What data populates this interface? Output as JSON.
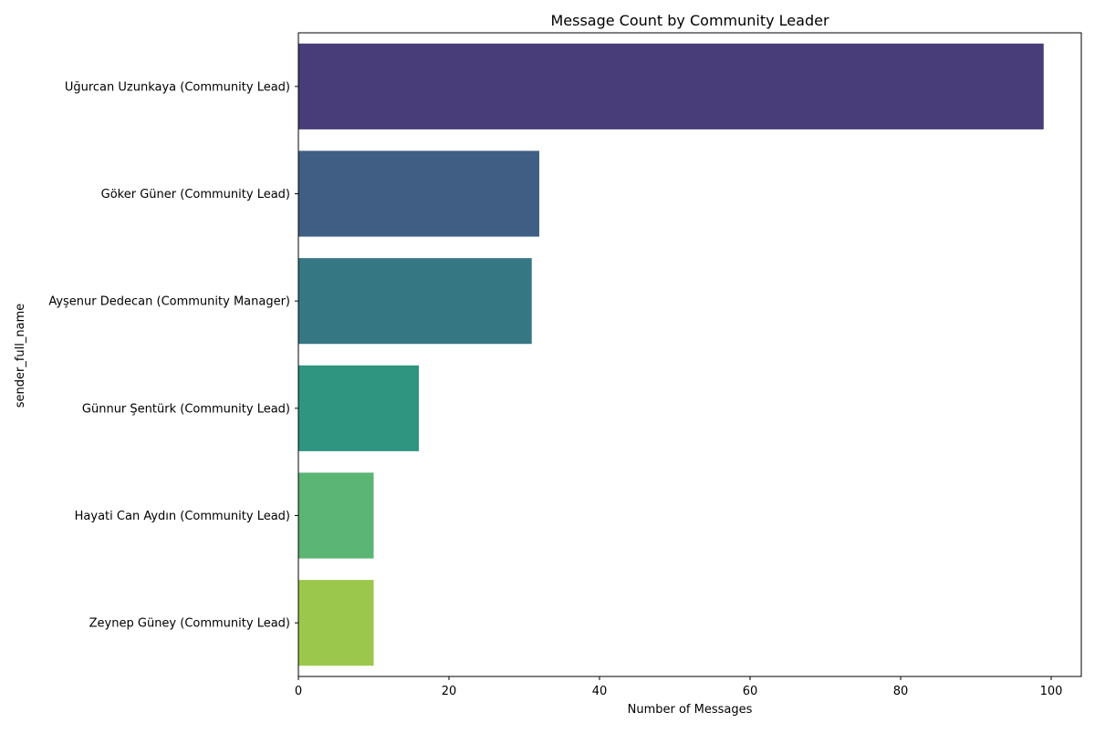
{
  "chart_data": {
    "type": "bar",
    "orientation": "horizontal",
    "title": "Message Count by Community Leader",
    "xlabel": "Number of Messages",
    "ylabel": "sender_full_name",
    "categories": [
      "Uğurcan Uzunkaya (Community Lead)",
      "Göker Güner (Community Lead)",
      "Ayşenur Dedecan (Community Manager)",
      "Günnur Şentürk (Community Lead)",
      "Hayati Can Aydın (Community Lead)",
      "Zeynep Güney (Community Lead)"
    ],
    "values": [
      99,
      32,
      31,
      16,
      10,
      10
    ],
    "colors": [
      "#483d78",
      "#405e83",
      "#357884",
      "#2f9580",
      "#5bb574",
      "#9bc84c"
    ],
    "xlim": [
      0,
      104
    ],
    "xticks": [
      0,
      20,
      40,
      60,
      80,
      100
    ],
    "grid": false,
    "legend": "none"
  }
}
